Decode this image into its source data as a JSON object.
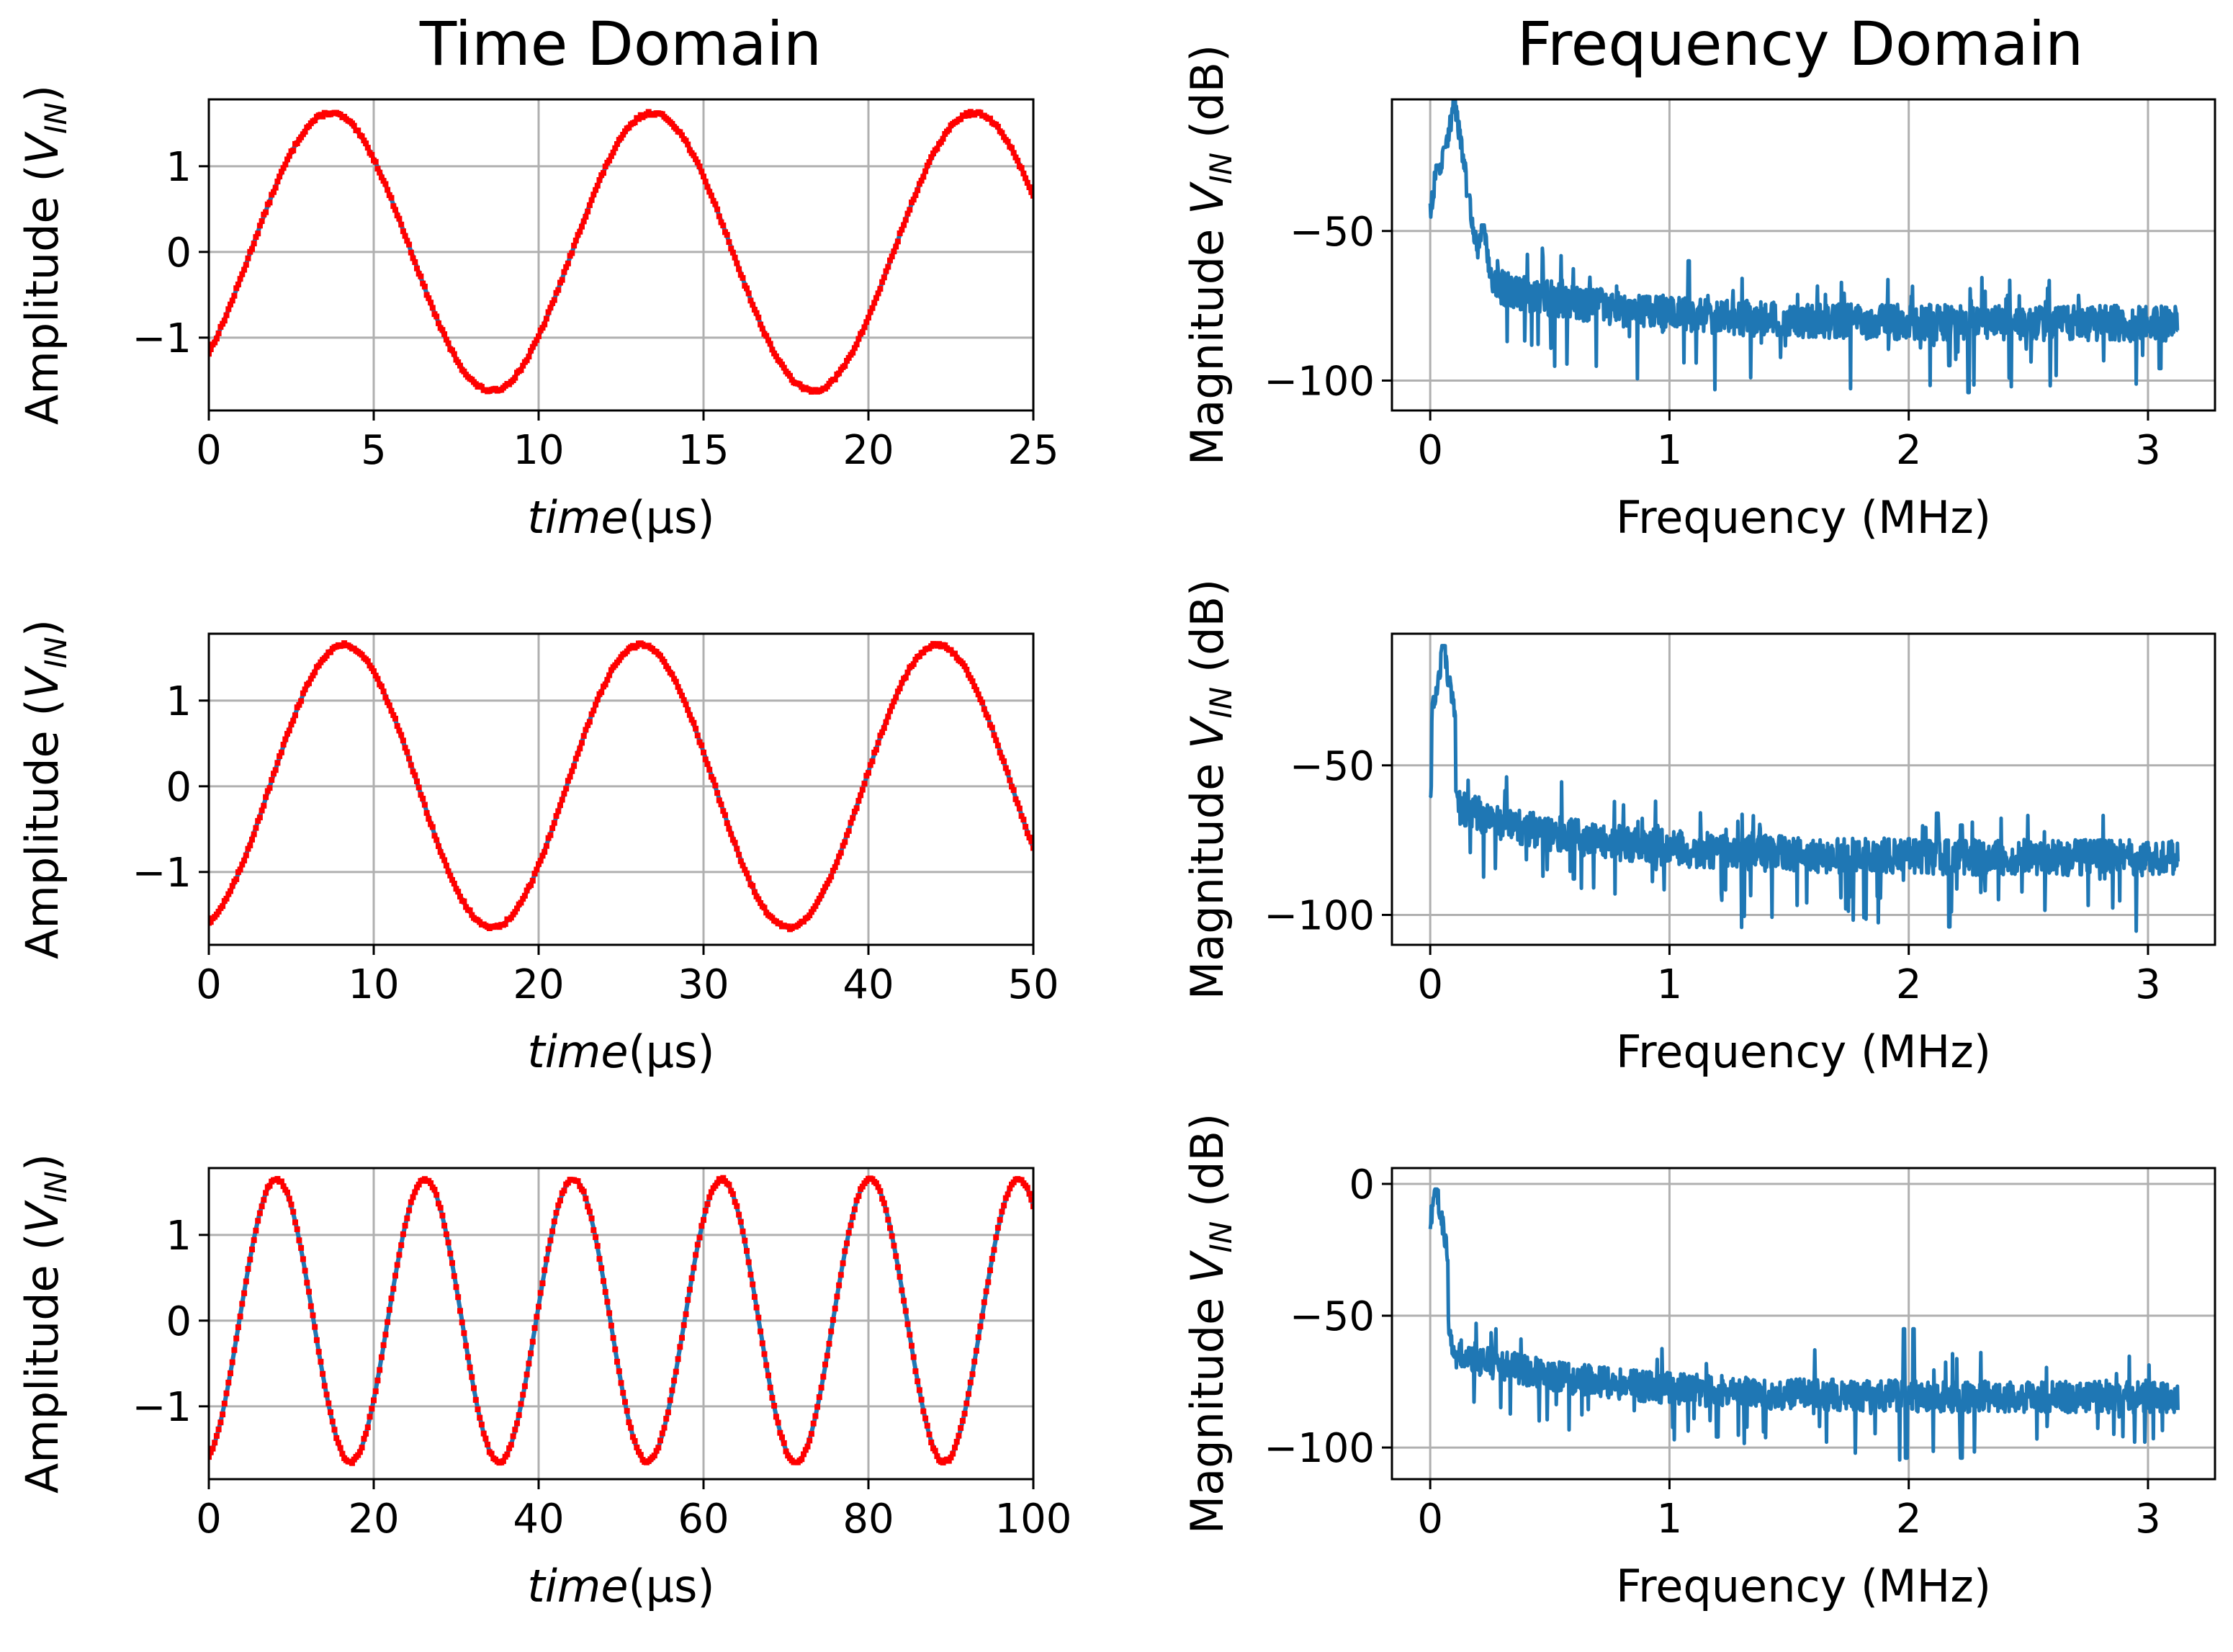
{
  "figure": {
    "column_titles": {
      "left": "Time Domain",
      "right": "Frequency Domain"
    }
  },
  "colors": {
    "signal": "#1f77b4",
    "samples": "#ff0000",
    "grid": "#b0b0b0"
  },
  "chart_data": [
    {
      "type": "line",
      "id": "time-1",
      "title": "",
      "xlabel_italic": "time",
      "xlabel_rest": "(µs)",
      "ylabel_base": "Amplitude (",
      "ylabel_sym": "V",
      "ylabel_sub": "IN",
      "ylabel_tail": ")",
      "xlim": [
        0,
        25
      ],
      "ylim": [
        -1.85,
        1.78
      ],
      "xticks": [
        0,
        5,
        10,
        15,
        20,
        25
      ],
      "yticks": [
        -1,
        0,
        1
      ],
      "ytick_labels": [
        "−1",
        "0",
        "1"
      ],
      "signal": {
        "amplitude": 1.62,
        "period_us": 9.75,
        "peak_at_us": 3.7
      },
      "series": [
        {
          "name": "signal",
          "style": "line",
          "color": "#1f77b4"
        },
        {
          "name": "samples",
          "style": "markers",
          "color": "#ff0000"
        }
      ]
    },
    {
      "type": "line",
      "id": "freq-1",
      "xlabel": "Frequency (MHz)",
      "ylabel_base": "Magnitude ",
      "ylabel_sym": "V",
      "ylabel_sub": "IN",
      "ylabel_tail": " (dB)",
      "xlim": [
        -0.16,
        3.28
      ],
      "ylim": [
        -110,
        -6
      ],
      "xticks": [
        0,
        1,
        2,
        3
      ],
      "yticks": [
        -100,
        -50
      ],
      "ytick_labels": [
        "−100",
        "−50"
      ],
      "spectrum": {
        "series_name": "magnitude",
        "color": "#1f77b4",
        "f_max": 3.125,
        "peaks": [
          [
            0.03,
            -28
          ],
          [
            0.06,
            -22
          ],
          [
            0.1,
            -6
          ],
          [
            0.13,
            -30
          ],
          [
            0.16,
            -38
          ],
          [
            0.22,
            -48
          ]
        ],
        "features": [
          [
            1.08,
            -60
          ],
          [
            1.28,
            -82
          ],
          [
            2.25,
            -104
          ],
          [
            2.17,
            -95
          ],
          [
            3.05,
            -96
          ]
        ],
        "floor_start": -60,
        "floor_end": -81
      }
    },
    {
      "type": "line",
      "id": "time-2",
      "xlabel_italic": "time",
      "xlabel_rest": "(µs)",
      "ylabel_base": "Amplitude (",
      "ylabel_sym": "V",
      "ylabel_sub": "IN",
      "ylabel_tail": ")",
      "xlim": [
        0,
        50
      ],
      "ylim": [
        -1.85,
        1.78
      ],
      "xticks": [
        0,
        10,
        20,
        30,
        40,
        50
      ],
      "yticks": [
        -1,
        0,
        1
      ],
      "ytick_labels": [
        "−1",
        "0",
        "1"
      ],
      "signal": {
        "amplitude": 1.65,
        "period_us": 18.0,
        "peak_at_us": 8.2
      },
      "series": [
        {
          "name": "signal",
          "style": "line",
          "color": "#1f77b4"
        },
        {
          "name": "samples",
          "style": "markers",
          "color": "#ff0000"
        }
      ]
    },
    {
      "type": "line",
      "id": "freq-2",
      "xlabel": "Frequency (MHz)",
      "ylabel_base": "Magnitude ",
      "ylabel_sym": "V",
      "ylabel_sub": "IN",
      "ylabel_tail": " (dB)",
      "xlim": [
        -0.16,
        3.28
      ],
      "ylim": [
        -110,
        -6
      ],
      "xticks": [
        0,
        1,
        2,
        3
      ],
      "yticks": [
        -100,
        -50
      ],
      "ytick_labels": [
        "−100",
        "−50"
      ],
      "spectrum": {
        "series_name": "magnitude",
        "color": "#1f77b4",
        "f_max": 3.125,
        "peaks": [
          [
            0.055,
            -10
          ],
          [
            0.075,
            -40
          ]
        ],
        "features": [
          [
            2.17,
            -104
          ],
          [
            2.12,
            -66
          ],
          [
            2.22,
            -70
          ],
          [
            0.6,
            -88
          ]
        ],
        "floor_start": -60,
        "floor_end": -81
      }
    },
    {
      "type": "line",
      "id": "time-3",
      "xlabel_italic": "time",
      "xlabel_rest": "(µs)",
      "ylabel_base": "Amplitude (",
      "ylabel_sym": "V",
      "ylabel_sub": "IN",
      "ylabel_tail": ")",
      "xlim": [
        0,
        100
      ],
      "ylim": [
        -1.85,
        1.78
      ],
      "xticks": [
        0,
        20,
        40,
        60,
        80,
        100
      ],
      "yticks": [
        -1,
        0,
        1
      ],
      "ytick_labels": [
        "−1",
        "0",
        "1"
      ],
      "signal": {
        "amplitude": 1.65,
        "period_us": 18.0,
        "peak_at_us": 8.2
      },
      "series": [
        {
          "name": "signal",
          "style": "line",
          "color": "#1f77b4"
        },
        {
          "name": "samples",
          "style": "markers",
          "color": "#ff0000"
        }
      ]
    },
    {
      "type": "line",
      "id": "freq-3",
      "xlabel": "Frequency (MHz)",
      "ylabel_base": "Magnitude ",
      "ylabel_sym": "V",
      "ylabel_sub": "IN",
      "ylabel_tail": " (dB)",
      "xlim": [
        -0.16,
        3.28
      ],
      "ylim": [
        -112,
        6
      ],
      "xticks": [
        0,
        1,
        2,
        3
      ],
      "yticks": [
        -100,
        -50,
        0
      ],
      "ytick_labels": [
        "−100",
        "−50",
        "0"
      ],
      "spectrum": {
        "series_name": "magnitude",
        "color": "#1f77b4",
        "f_max": 3.125,
        "peaks": [
          [
            0.025,
            -2
          ],
          [
            0.045,
            -38
          ]
        ],
        "features": [
          [
            1.98,
            -55
          ],
          [
            2.02,
            -55
          ],
          [
            1.99,
            -104
          ],
          [
            2.22,
            -104
          ],
          [
            1.2,
            -96
          ]
        ],
        "floor_start": -60,
        "floor_end": -81
      }
    }
  ]
}
